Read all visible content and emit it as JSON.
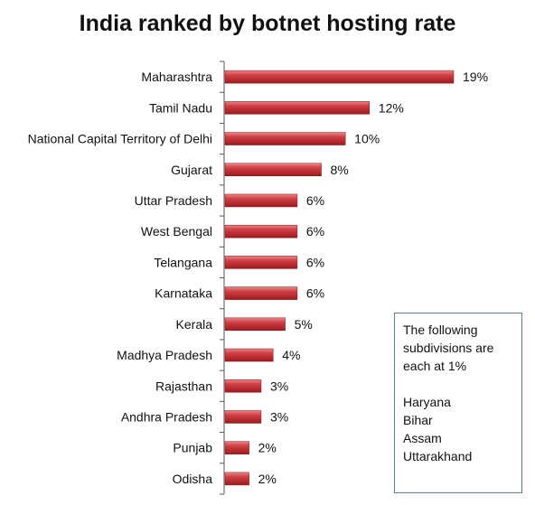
{
  "chart_data": {
    "type": "bar",
    "orientation": "horizontal",
    "title": "India ranked by botnet hosting rate",
    "xlabel": "",
    "ylabel": "",
    "categories": [
      "Maharashtra",
      "Tamil Nadu",
      "National Capital Territory of Delhi",
      "Gujarat",
      "Uttar Pradesh",
      "West Bengal",
      "Telangana",
      "Karnataka",
      "Kerala",
      "Madhya Pradesh",
      "Rajasthan",
      "Andhra Pradesh",
      "Punjab",
      "Odisha"
    ],
    "values": [
      19,
      12,
      10,
      8,
      6,
      6,
      6,
      6,
      5,
      4,
      3,
      3,
      2,
      2
    ],
    "value_labels": [
      "19%",
      "12%",
      "10%",
      "8%",
      "6%",
      "6%",
      "6%",
      "6%",
      "5%",
      "4%",
      "3%",
      "3%",
      "2%",
      "2%"
    ],
    "xlim": [
      0,
      19
    ],
    "grid": false,
    "legend": "none",
    "bar_color": "#c0282c"
  },
  "note": {
    "text": "The following subdivisions are each at 1%",
    "items": [
      "Haryana",
      "Bihar",
      "Assam",
      "Uttarakhand"
    ]
  }
}
